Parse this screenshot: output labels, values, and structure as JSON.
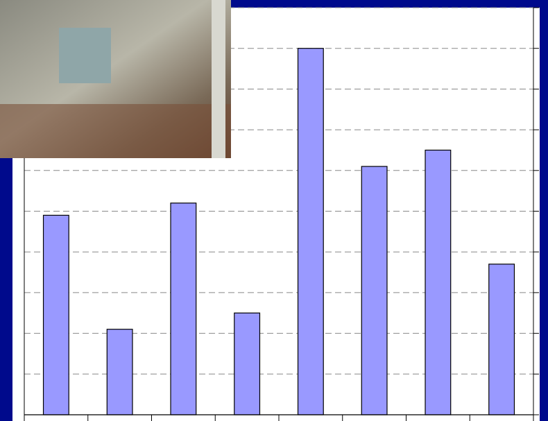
{
  "chart_data": {
    "type": "bar",
    "categories": [
      null,
      null,
      null,
      null,
      null,
      null,
      null,
      null
    ],
    "values": [
      4.9,
      2.1,
      5.2,
      2.5,
      9.0,
      6.1,
      6.5,
      3.7
    ],
    "color": "#9999ff",
    "ylim": [
      0,
      10
    ],
    "yticks": [
      0,
      1,
      2,
      3,
      4,
      5,
      6,
      7,
      8,
      9,
      10
    ],
    "grid": true
  }
}
